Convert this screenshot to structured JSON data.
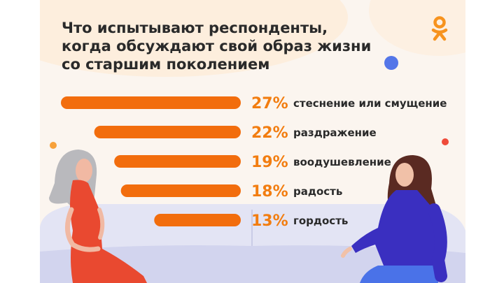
{
  "title_lines": [
    "Что испытывают респонденты,",
    "когда обсуждают свой образ жизни",
    "со старшим поколением"
  ],
  "logo": {
    "icon": "odnoklassniki-icon",
    "color": "#f7931e"
  },
  "colors": {
    "bar": "#f26d0d",
    "percent": "#f27d10",
    "label": "#2a2a2a",
    "background": "#fbf5ef",
    "sofa": "#dfe0f2"
  },
  "chart_data": {
    "type": "bar",
    "orientation": "horizontal",
    "categories": [
      "стеснение или смущение",
      "раздражение",
      "воодушевление",
      "радость",
      "гордость"
    ],
    "values": [
      27,
      22,
      19,
      18,
      13
    ],
    "value_labels": [
      "27%",
      "22%",
      "19%",
      "18%",
      "13%"
    ],
    "unit": "%",
    "title": "Что испытывают респонденты, когда обсуждают свой образ жизни со старшим поколением",
    "xlabel": "",
    "ylabel": "",
    "xlim": [
      0,
      27
    ],
    "grid": false,
    "legend": "none"
  }
}
